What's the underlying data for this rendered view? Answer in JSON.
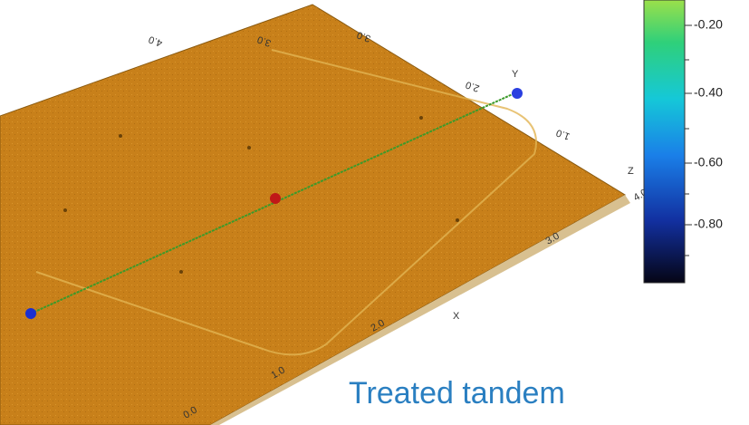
{
  "image": {
    "caption": "Treated tandem",
    "colorbar": {
      "ticks": [
        "-0.20",
        "-0.40",
        "-0.60",
        "-0.80"
      ]
    },
    "surface_labels": {
      "y_axis": "Y",
      "x_axis": "X",
      "z_axis": "Z",
      "y_ticks": [
        "4.0",
        "3.0",
        "2.0",
        "1.0"
      ],
      "x_ticks": [
        "0.0",
        "1.0",
        "2.0",
        "3.0",
        "4.0"
      ]
    }
  }
}
